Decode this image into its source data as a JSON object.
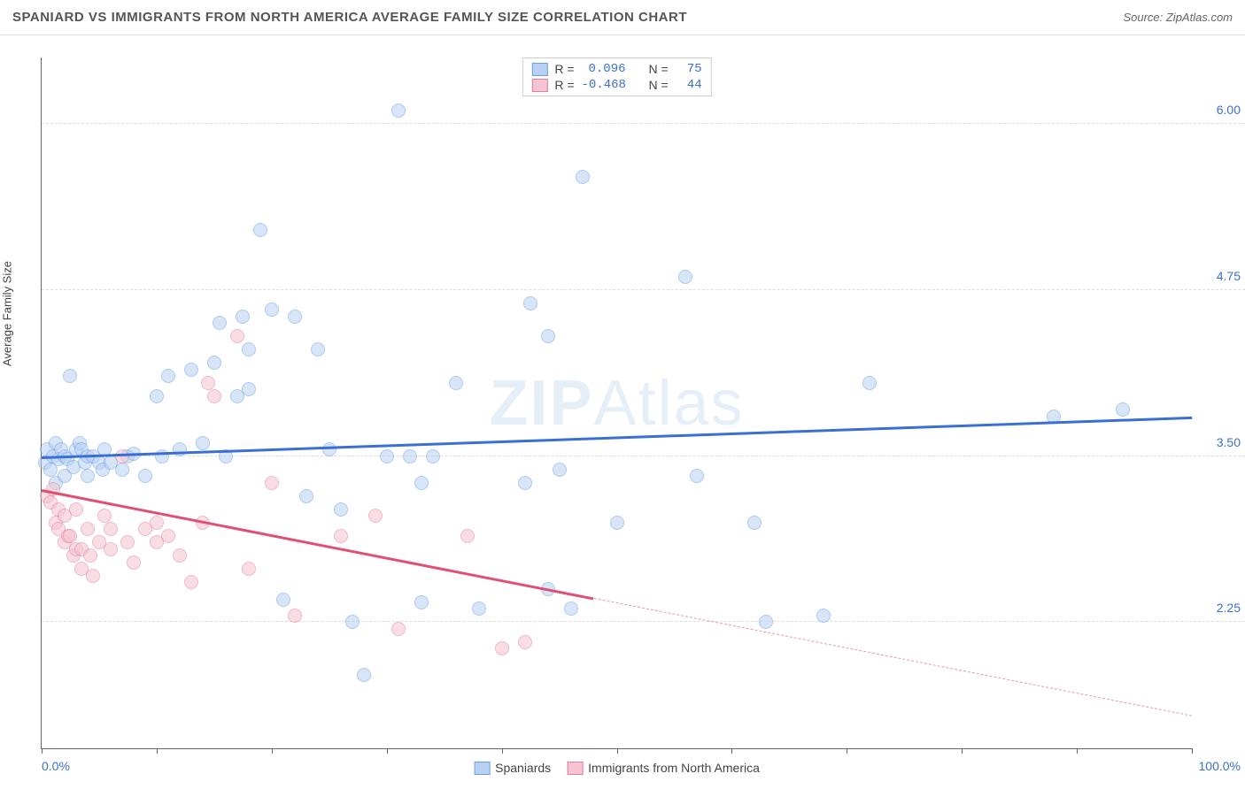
{
  "title": "SPANIARD VS IMMIGRANTS FROM NORTH AMERICA AVERAGE FAMILY SIZE CORRELATION CHART",
  "source": "Source: ZipAtlas.com",
  "ylabel": "Average Family Size",
  "watermark_a": "ZIP",
  "watermark_b": "Atlas",
  "chart": {
    "type": "scatter",
    "xlim": [
      0,
      100
    ],
    "ylim": [
      1.3,
      6.5
    ],
    "x_start_label": "0.0%",
    "x_end_label": "100.0%",
    "x_label_color": "#3b6fd4",
    "yticks": [
      2.25,
      3.5,
      4.75,
      6.0
    ],
    "ytick_labels": [
      "2.25",
      "3.50",
      "4.75",
      "6.00"
    ],
    "ytick_color": "#3b6fd4",
    "xtick_positions": [
      0,
      10,
      20,
      30,
      40,
      50,
      60,
      70,
      80,
      90,
      100
    ],
    "grid_color": "#dddddd",
    "background_color": "#ffffff",
    "marker_radius": 8,
    "marker_opacity": 0.55,
    "series": [
      {
        "name": "Spaniards",
        "color": "#6aa0e8",
        "fill": "#b8d1f2",
        "stroke": "#6aa0e8",
        "R": "0.096",
        "N": "75",
        "trend": {
          "x1": 0,
          "y1": 3.5,
          "x2": 100,
          "y2": 3.8,
          "solid_to_x": 100,
          "color": "#3b6fd4"
        },
        "points": [
          [
            0.3,
            3.45
          ],
          [
            0.5,
            3.55
          ],
          [
            0.8,
            3.4
          ],
          [
            1.0,
            3.5
          ],
          [
            1.2,
            3.6
          ],
          [
            1.2,
            3.3
          ],
          [
            1.5,
            3.48
          ],
          [
            1.7,
            3.55
          ],
          [
            2.0,
            3.5
          ],
          [
            2.0,
            3.35
          ],
          [
            2.2,
            3.48
          ],
          [
            2.5,
            4.1
          ],
          [
            2.8,
            3.42
          ],
          [
            3.0,
            3.55
          ],
          [
            3.3,
            3.6
          ],
          [
            3.5,
            3.55
          ],
          [
            3.8,
            3.45
          ],
          [
            4.0,
            3.5
          ],
          [
            4.0,
            3.35
          ],
          [
            4.5,
            3.5
          ],
          [
            5.0,
            3.45
          ],
          [
            5.3,
            3.4
          ],
          [
            5.5,
            3.55
          ],
          [
            6.0,
            3.45
          ],
          [
            7.0,
            3.4
          ],
          [
            7.5,
            3.5
          ],
          [
            8.0,
            3.52
          ],
          [
            9.0,
            3.35
          ],
          [
            10.0,
            3.95
          ],
          [
            10.5,
            3.5
          ],
          [
            11.0,
            4.1
          ],
          [
            12.0,
            3.55
          ],
          [
            13.0,
            4.15
          ],
          [
            14.0,
            3.6
          ],
          [
            15.0,
            4.2
          ],
          [
            15.5,
            4.5
          ],
          [
            16.0,
            3.5
          ],
          [
            17.0,
            3.95
          ],
          [
            17.5,
            4.55
          ],
          [
            18.0,
            4.3
          ],
          [
            18.0,
            4.0
          ],
          [
            19.0,
            5.2
          ],
          [
            20.0,
            4.6
          ],
          [
            21.0,
            2.42
          ],
          [
            22.0,
            4.55
          ],
          [
            23.0,
            3.2
          ],
          [
            24.0,
            4.3
          ],
          [
            25.0,
            3.55
          ],
          [
            26.0,
            3.1
          ],
          [
            27.0,
            2.25
          ],
          [
            28.0,
            1.85
          ],
          [
            30.0,
            3.5
          ],
          [
            31.0,
            6.1
          ],
          [
            32.0,
            3.5
          ],
          [
            33.0,
            3.3
          ],
          [
            33.0,
            2.4
          ],
          [
            34.0,
            3.5
          ],
          [
            36.0,
            4.05
          ],
          [
            38.0,
            2.35
          ],
          [
            42.0,
            3.3
          ],
          [
            42.5,
            4.65
          ],
          [
            44.0,
            2.5
          ],
          [
            44.0,
            4.4
          ],
          [
            45.0,
            3.4
          ],
          [
            46.0,
            2.35
          ],
          [
            47.0,
            5.6
          ],
          [
            50.0,
            3.0
          ],
          [
            56.0,
            4.85
          ],
          [
            57.0,
            3.35
          ],
          [
            62.0,
            3.0
          ],
          [
            68.0,
            2.3
          ],
          [
            72.0,
            4.05
          ],
          [
            88.0,
            3.8
          ],
          [
            94.0,
            3.85
          ],
          [
            63.0,
            2.25
          ]
        ]
      },
      {
        "name": "Immigrants from North America",
        "color": "#e57f9a",
        "fill": "#f5c3d1",
        "stroke": "#e57f9a",
        "R": "-0.468",
        "N": "44",
        "trend": {
          "x1": 0,
          "y1": 3.25,
          "x2": 100,
          "y2": 1.55,
          "solid_to_x": 48,
          "color": "#e05075"
        },
        "points": [
          [
            0.5,
            3.2
          ],
          [
            0.8,
            3.15
          ],
          [
            1.0,
            3.25
          ],
          [
            1.2,
            3.0
          ],
          [
            1.5,
            2.95
          ],
          [
            1.5,
            3.1
          ],
          [
            2.0,
            3.05
          ],
          [
            2.0,
            2.85
          ],
          [
            2.3,
            2.9
          ],
          [
            2.5,
            2.9
          ],
          [
            2.8,
            2.75
          ],
          [
            3.0,
            3.1
          ],
          [
            3.0,
            2.8
          ],
          [
            3.5,
            2.8
          ],
          [
            3.5,
            2.65
          ],
          [
            4.0,
            2.95
          ],
          [
            4.2,
            2.75
          ],
          [
            4.5,
            2.6
          ],
          [
            5.0,
            2.85
          ],
          [
            5.5,
            3.05
          ],
          [
            6.0,
            2.8
          ],
          [
            6.0,
            2.95
          ],
          [
            7.0,
            3.5
          ],
          [
            7.5,
            2.85
          ],
          [
            8.0,
            2.7
          ],
          [
            9.0,
            2.95
          ],
          [
            10.0,
            2.85
          ],
          [
            10.0,
            3.0
          ],
          [
            11.0,
            2.9
          ],
          [
            12.0,
            2.75
          ],
          [
            13.0,
            2.55
          ],
          [
            14.0,
            3.0
          ],
          [
            14.5,
            4.05
          ],
          [
            15.0,
            3.95
          ],
          [
            17.0,
            4.4
          ],
          [
            18.0,
            2.65
          ],
          [
            20.0,
            3.3
          ],
          [
            22.0,
            2.3
          ],
          [
            26.0,
            2.9
          ],
          [
            29.0,
            3.05
          ],
          [
            31.0,
            2.2
          ],
          [
            37.0,
            2.9
          ],
          [
            40.0,
            2.05
          ],
          [
            42.0,
            2.1
          ]
        ]
      }
    ]
  },
  "stat_legend": {
    "labels": {
      "R": "R =",
      "N": "N ="
    }
  },
  "bottom_legend": {
    "items": [
      {
        "label": "Spaniards",
        "fill": "#b8d1f2",
        "stroke": "#6aa0e8"
      },
      {
        "label": "Immigrants from North America",
        "fill": "#f5c3d1",
        "stroke": "#e57f9a"
      }
    ]
  }
}
